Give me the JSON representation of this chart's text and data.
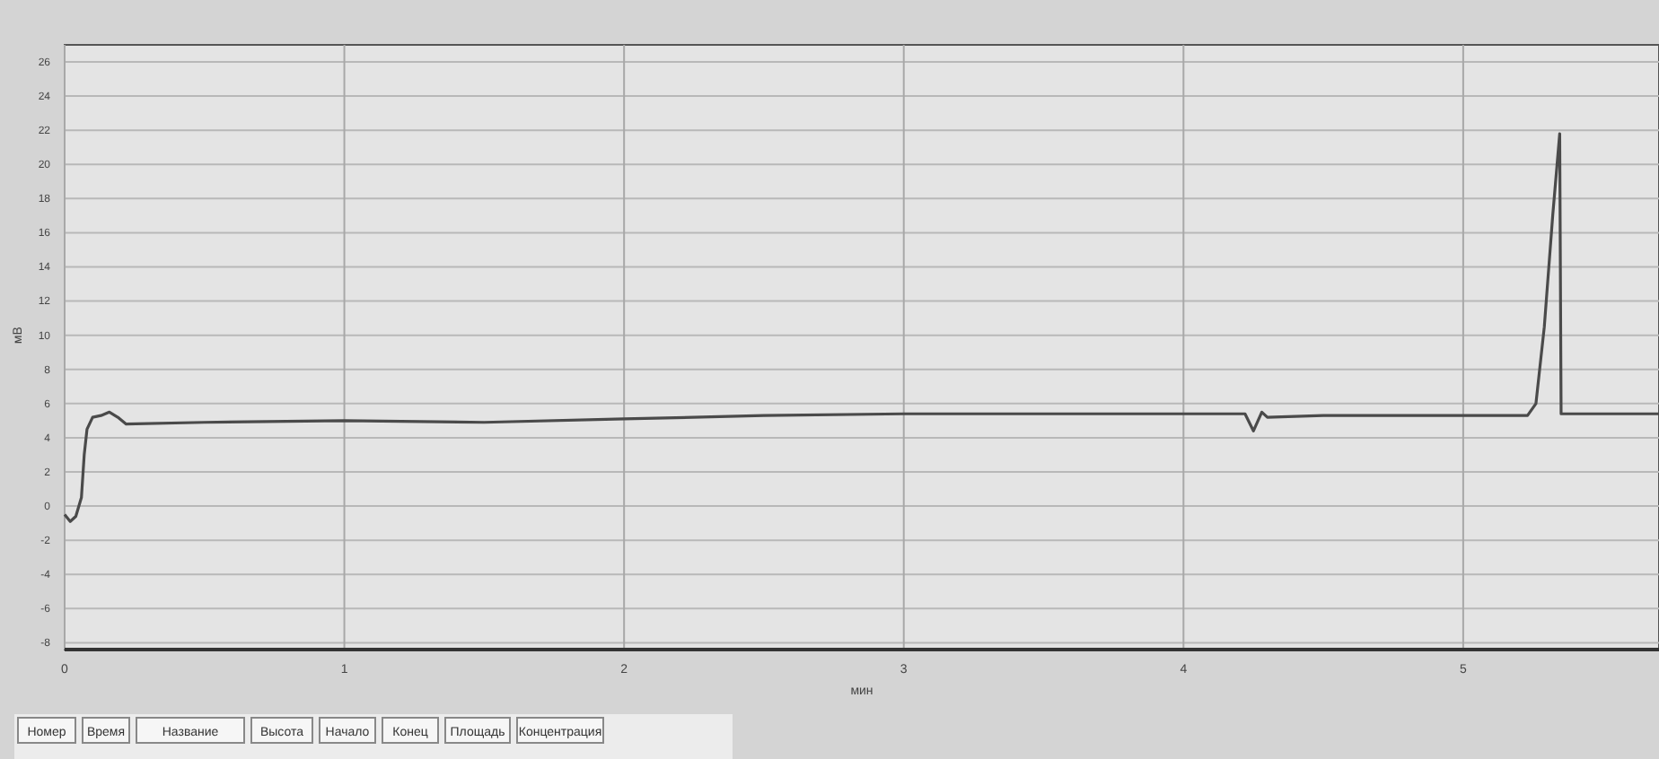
{
  "chart_data": {
    "type": "line",
    "xlabel": "мин",
    "ylabel": "мВ",
    "xlim": [
      0,
      5.7
    ],
    "ylim": [
      -8.4,
      27
    ],
    "xticks": [
      0,
      1,
      2,
      3,
      4,
      5
    ],
    "yticks": [
      -8,
      -6,
      -4,
      -2,
      0,
      2,
      4,
      6,
      8,
      10,
      12,
      14,
      16,
      18,
      20,
      22,
      24,
      26
    ],
    "grid": true,
    "line_style": "solid",
    "series": [
      {
        "color": "#4a4a4a",
        "x": [
          0,
          0.02,
          0.04,
          0.06,
          0.07,
          0.08,
          0.1,
          0.13,
          0.16,
          0.19,
          0.22,
          0.5,
          1,
          1.5,
          2,
          2.5,
          3,
          3.5,
          4,
          4.22,
          4.25,
          4.28,
          4.3,
          4.5,
          5,
          5.23,
          5.26,
          5.29,
          5.32,
          5.345,
          5.35,
          5.5,
          5.7
        ],
        "values": [
          -0.5,
          -0.9,
          -0.6,
          0.5,
          3,
          4.5,
          5.2,
          5.3,
          5.5,
          5.2,
          4.8,
          4.9,
          5,
          4.9,
          5.1,
          5.3,
          5.4,
          5.4,
          5.4,
          5.4,
          4.4,
          5.5,
          5.2,
          5.3,
          5.3,
          5.3,
          6,
          10.5,
          17,
          21.8,
          5.4,
          5.4,
          5.4
        ]
      }
    ],
    "annotations": [
      "Номер",
      "Время",
      "Название",
      "Высота",
      "Начало",
      "Конец",
      "Площадь",
      "Концентрация"
    ]
  }
}
